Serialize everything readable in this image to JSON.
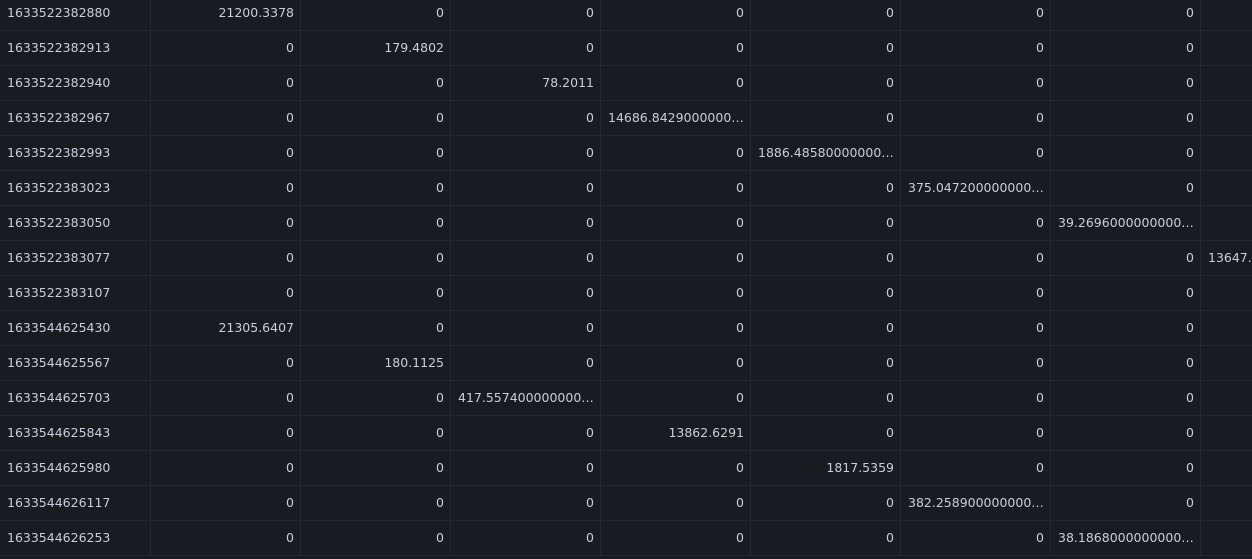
{
  "table": {
    "rows": [
      [
        "1633522382880",
        "21200.3378",
        "0",
        "0",
        "0",
        "0",
        "0",
        "0",
        null
      ],
      [
        "1633522382913",
        "0",
        "179.4802",
        "0",
        "0",
        "0",
        "0",
        "0",
        null
      ],
      [
        "1633522382940",
        "0",
        "0",
        "78.2011",
        "0",
        "0",
        "0",
        "0",
        null
      ],
      [
        "1633522382967",
        "0",
        "0",
        "0",
        "14686.8429000000…",
        "0",
        "0",
        "0",
        null
      ],
      [
        "1633522382993",
        "0",
        "0",
        "0",
        "0",
        "1886.48580000000…",
        "0",
        "0",
        null
      ],
      [
        "1633522383023",
        "0",
        "0",
        "0",
        "0",
        "0",
        "375.047200000000…",
        "0",
        null
      ],
      [
        "1633522383050",
        "0",
        "0",
        "0",
        "0",
        "0",
        "0",
        "39.2696000000000…",
        null
      ],
      [
        "1633522383077",
        "0",
        "0",
        "0",
        "0",
        "0",
        "0",
        "0",
        "13647."
      ],
      [
        "1633522383107",
        "0",
        "0",
        "0",
        "0",
        "0",
        "0",
        "0",
        null
      ],
      [
        "1633544625430",
        "21305.6407",
        "0",
        "0",
        "0",
        "0",
        "0",
        "0",
        null
      ],
      [
        "1633544625567",
        "0",
        "180.1125",
        "0",
        "0",
        "0",
        "0",
        "0",
        null
      ],
      [
        "1633544625703",
        "0",
        "0",
        "417.557400000000…",
        "0",
        "0",
        "0",
        "0",
        null
      ],
      [
        "1633544625843",
        "0",
        "0",
        "0",
        "13862.6291",
        "0",
        "0",
        "0",
        null
      ],
      [
        "1633544625980",
        "0",
        "0",
        "0",
        "0",
        "1817.5359",
        "0",
        "0",
        null
      ],
      [
        "1633544626117",
        "0",
        "0",
        "0",
        "0",
        "0",
        "382.258900000000…",
        "0",
        null
      ],
      [
        "1633544626253",
        "0",
        "0",
        "0",
        "0",
        "0",
        "0",
        "38.1868000000000…",
        null
      ]
    ]
  }
}
